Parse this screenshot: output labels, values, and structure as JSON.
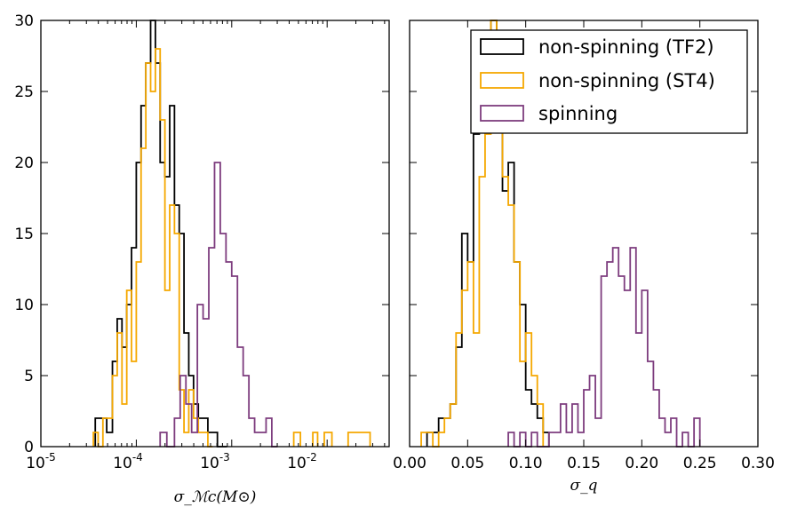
{
  "chart_data": [
    {
      "type": "step-histogram",
      "xscale": "log",
      "xlabel": "σ_ℳc(M⊙)",
      "ylabel": "",
      "ylim": [
        0,
        30
      ],
      "xlim_log10": [
        -5,
        -1.35
      ],
      "xtick_labels": [
        "10-5",
        "10-4",
        "10-3",
        "10-2"
      ],
      "ytick_labels": [
        "0",
        "5",
        "10",
        "15",
        "20",
        "25",
        "30"
      ],
      "series": [
        {
          "name": "non-spinning (TF2)",
          "color": "#000000",
          "edges_log10": [
            -4.43,
            -4.37,
            -4.31,
            -4.25,
            -4.2,
            -4.15,
            -4.1,
            -4.05,
            -4.0,
            -3.95,
            -3.9,
            -3.85,
            -3.8,
            -3.75,
            -3.7,
            -3.65,
            -3.6,
            -3.55,
            -3.5,
            -3.45,
            -3.4,
            -3.35,
            -3.3,
            -3.25,
            -3.2,
            -3.15,
            -3.1,
            -3.05
          ],
          "counts": [
            2,
            2,
            1,
            6,
            9,
            7,
            10,
            14,
            20,
            24,
            27,
            30,
            27,
            20,
            19,
            24,
            17,
            15,
            8,
            5,
            3,
            2,
            2,
            1,
            1,
            0,
            0
          ]
        },
        {
          "name": "non-spinning (ST4)",
          "color": "#f5a800",
          "edges_log10": [
            -4.45,
            -4.4,
            -4.35,
            -4.3,
            -4.25,
            -4.2,
            -4.15,
            -4.1,
            -4.05,
            -4.0,
            -3.95,
            -3.9,
            -3.85,
            -3.8,
            -3.75,
            -3.7,
            -3.65,
            -3.6,
            -3.55,
            -3.5,
            -3.45,
            -3.4,
            -3.35,
            -3.3,
            -3.25,
            -3.2
          ],
          "counts": [
            1,
            0,
            2,
            2,
            5,
            8,
            3,
            11,
            6,
            13,
            21,
            27,
            25,
            28,
            23,
            11,
            17,
            15,
            4,
            1,
            4,
            2,
            1,
            1,
            0
          ],
          "extra_bins": [
            {
              "edges_log10": [
                -2.35,
                -2.28
              ],
              "count": 1
            },
            {
              "edges_log10": [
                -2.15,
                -2.1
              ],
              "count": 1
            },
            {
              "edges_log10": [
                -2.03,
                -1.95
              ],
              "count": 1
            },
            {
              "edges_log10": [
                -1.78,
                -1.55
              ],
              "count": 1
            }
          ]
        },
        {
          "name": "spinning",
          "color": "#7d3c7e",
          "edges_log10": [
            -3.75,
            -3.68,
            -3.6,
            -3.54,
            -3.48,
            -3.42,
            -3.36,
            -3.3,
            -3.24,
            -3.18,
            -3.12,
            -3.06,
            -3.0,
            -2.94,
            -2.88,
            -2.82,
            -2.76,
            -2.7,
            -2.64,
            -2.58,
            -2.52
          ],
          "counts": [
            1,
            0,
            2,
            5,
            3,
            1,
            10,
            9,
            14,
            20,
            15,
            13,
            12,
            7,
            5,
            2,
            1,
            1,
            2,
            0
          ],
          "extra_bins": []
        }
      ]
    },
    {
      "type": "step-histogram",
      "xscale": "linear",
      "xlabel": "σ_q",
      "ylabel": "",
      "xlim": [
        0.0,
        0.3
      ],
      "ylim": [
        0,
        30
      ],
      "xtick_labels": [
        "0.00",
        "0.05",
        "0.10",
        "0.15",
        "0.20",
        "0.25",
        "0.30"
      ],
      "legend_position": "top-right",
      "legend": [
        "non-spinning (TF2)",
        "non-spinning (ST4)",
        "spinning"
      ],
      "series": [
        {
          "name": "non-spinning (TF2)",
          "color": "#000000",
          "edges": [
            0.015,
            0.02,
            0.025,
            0.03,
            0.035,
            0.04,
            0.045,
            0.05,
            0.055,
            0.06,
            0.065,
            0.07,
            0.075,
            0.08,
            0.085,
            0.09,
            0.095,
            0.1,
            0.105,
            0.11,
            0.115,
            0.12
          ],
          "counts": [
            1,
            1,
            2,
            2,
            3,
            7,
            15,
            13,
            22,
            26,
            28,
            30,
            26,
            18,
            20,
            13,
            10,
            4,
            3,
            2,
            1
          ]
        },
        {
          "name": "non-spinning (ST4)",
          "color": "#f5a800",
          "edges": [
            0.01,
            0.015,
            0.02,
            0.025,
            0.03,
            0.035,
            0.04,
            0.045,
            0.05,
            0.055,
            0.06,
            0.065,
            0.07,
            0.075,
            0.08,
            0.085,
            0.09,
            0.095,
            0.1,
            0.105,
            0.11,
            0.115
          ],
          "counts": [
            1,
            1,
            0,
            1,
            2,
            3,
            8,
            11,
            13,
            8,
            19,
            22,
            30,
            24,
            19,
            17,
            13,
            6,
            8,
            5,
            3
          ]
        },
        {
          "name": "spinning",
          "color": "#7d3c7e",
          "edges": [
            0.085,
            0.09,
            0.095,
            0.1,
            0.105,
            0.11,
            0.115,
            0.12,
            0.125,
            0.13,
            0.135,
            0.14,
            0.145,
            0.15,
            0.155,
            0.16,
            0.165,
            0.17,
            0.175,
            0.18,
            0.185,
            0.19,
            0.195,
            0.2,
            0.205,
            0.21,
            0.215,
            0.22,
            0.225,
            0.23,
            0.235,
            0.24,
            0.245,
            0.25
          ],
          "counts": [
            1,
            0,
            1,
            0,
            1,
            0,
            0,
            1,
            1,
            3,
            1,
            3,
            1,
            4,
            5,
            2,
            12,
            13,
            14,
            12,
            11,
            14,
            8,
            11,
            6,
            4,
            2,
            1,
            2,
            0,
            1,
            0,
            2
          ]
        }
      ]
    }
  ]
}
